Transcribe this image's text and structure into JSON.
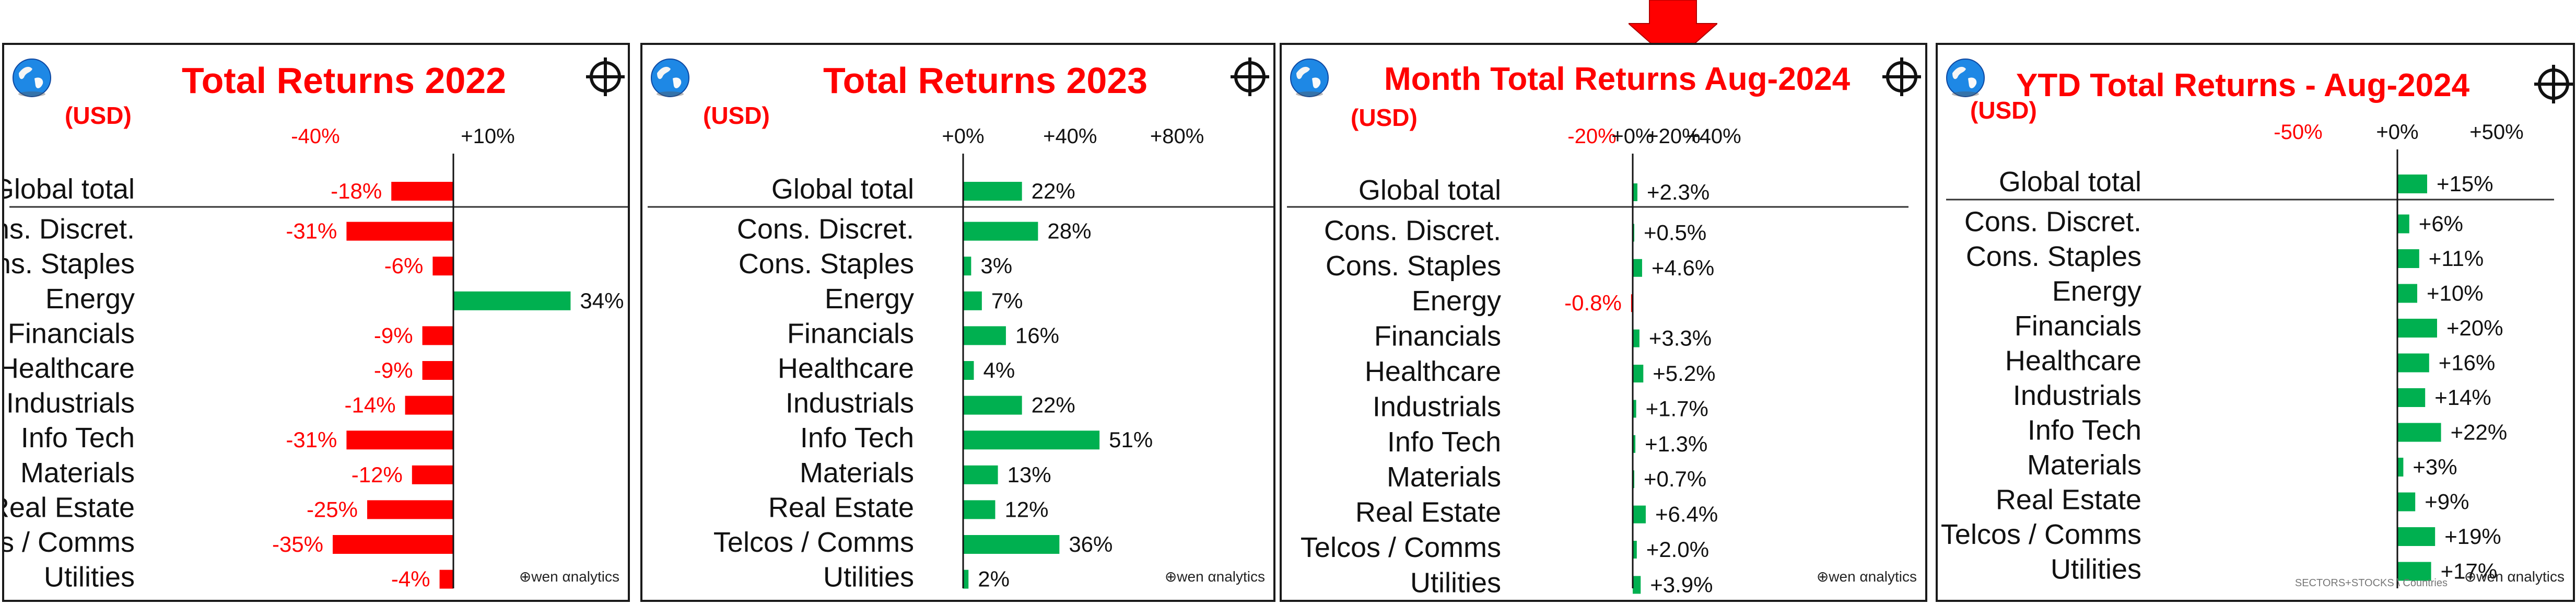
{
  "units_label": "(USD)",
  "brand": "wen αnalytics",
  "footnote": "SECTORS+STOCKS \\ Countries",
  "colors": {
    "negative": "#ff0000",
    "positive": "#00b050",
    "title": "#ff0000"
  },
  "categories": [
    "Global total",
    "Cons. Discret.",
    "Cons. Staples",
    "Energy",
    "Financials",
    "Healthcare",
    "Industrials",
    "Info Tech",
    "Materials",
    "Real Estate",
    "Telcos / Comms",
    "Utilities"
  ],
  "chart_data": [
    {
      "type": "bar",
      "orientation": "horizontal",
      "title": "Total Returns 2022",
      "ylabel": "(USD)",
      "tick_labels": [
        "-40%",
        "+10%"
      ],
      "ticks": [
        -40,
        10
      ],
      "xlim": [
        -52,
        14
      ],
      "categories": [
        "Global total",
        "Cons. Discret.",
        "Cons. Staples",
        "Energy",
        "Financials",
        "Healthcare",
        "Industrials",
        "Info Tech",
        "Materials",
        "Real Estate",
        "Telcos / Comms",
        "Utilities"
      ],
      "values": [
        -18,
        -31,
        -6,
        34,
        -9,
        -9,
        -14,
        -31,
        -12,
        -25,
        -35,
        -4
      ],
      "value_labels": [
        "-18%",
        "-31%",
        "-6%",
        "34%",
        "-9%",
        "-9%",
        "-14%",
        "-31%",
        "-12%",
        "-25%",
        "-35%",
        "-4%"
      ]
    },
    {
      "type": "bar",
      "orientation": "horizontal",
      "title": "Total Returns 2023",
      "ylabel": "(USD)",
      "tick_labels": [
        "+0%",
        "+40%",
        "+80%"
      ],
      "ticks": [
        0,
        40,
        80
      ],
      "xlim": [
        0,
        100
      ],
      "categories": [
        "Global total",
        "Cons. Discret.",
        "Cons. Staples",
        "Energy",
        "Financials",
        "Healthcare",
        "Industrials",
        "Info Tech",
        "Materials",
        "Real Estate",
        "Telcos / Comms",
        "Utilities"
      ],
      "values": [
        22,
        28,
        3,
        7,
        16,
        4,
        22,
        51,
        13,
        12,
        36,
        2
      ],
      "value_labels": [
        "22%",
        "28%",
        "3%",
        "7%",
        "16%",
        "4%",
        "22%",
        "51%",
        "13%",
        "12%",
        "36%",
        "2%"
      ]
    },
    {
      "type": "bar",
      "orientation": "horizontal",
      "title": "Month Total Returns  Aug-2024",
      "ylabel": "(USD)",
      "tick_labels": [
        "-20%",
        "+0%",
        "+20%",
        "+40%"
      ],
      "ticks": [
        -20,
        0,
        20,
        40
      ],
      "xlim": [
        -39.8,
        40
      ],
      "categories": [
        "Global total",
        "Cons. Discret.",
        "Cons. Staples",
        "Energy",
        "Financials",
        "Healthcare",
        "Industrials",
        "Info Tech",
        "Materials",
        "Real Estate",
        "Telcos / Comms",
        "Utilities"
      ],
      "values": [
        2.3,
        0.5,
        4.6,
        -0.8,
        3.3,
        5.2,
        1.7,
        1.3,
        0.7,
        6.4,
        2.0,
        3.9
      ],
      "value_labels": [
        "+2.3%",
        "+0.5%",
        "+4.6%",
        "-0.8%",
        "+3.3%",
        "+5.2%",
        "+1.7%",
        "+1.3%",
        "+0.7%",
        "+6.4%",
        "+2.0%",
        "+3.9%"
      ]
    },
    {
      "type": "bar",
      "orientation": "horizontal",
      "title": "YTD Total Returns  -  Aug-2024",
      "ylabel": "(USD)",
      "tick_labels": [
        "-50%",
        "+0%",
        "+50%"
      ],
      "ticks": [
        -50,
        0,
        50
      ],
      "xlim": [
        -117,
        73
      ],
      "categories": [
        "Global total",
        "Cons. Discret.",
        "Cons. Staples",
        "Energy",
        "Financials",
        "Healthcare",
        "Industrials",
        "Info Tech",
        "Materials",
        "Real Estate",
        "Telcos / Comms",
        "Utilities"
      ],
      "values": [
        15,
        6,
        11,
        10,
        20,
        16,
        14,
        22,
        3,
        9,
        19,
        17
      ],
      "value_labels": [
        "+15%",
        "+6%",
        "+11%",
        "+10%",
        "+20%",
        "+16%",
        "+14%",
        "+22%",
        "+3%",
        "+9%",
        "+19%",
        "+17%"
      ]
    }
  ]
}
